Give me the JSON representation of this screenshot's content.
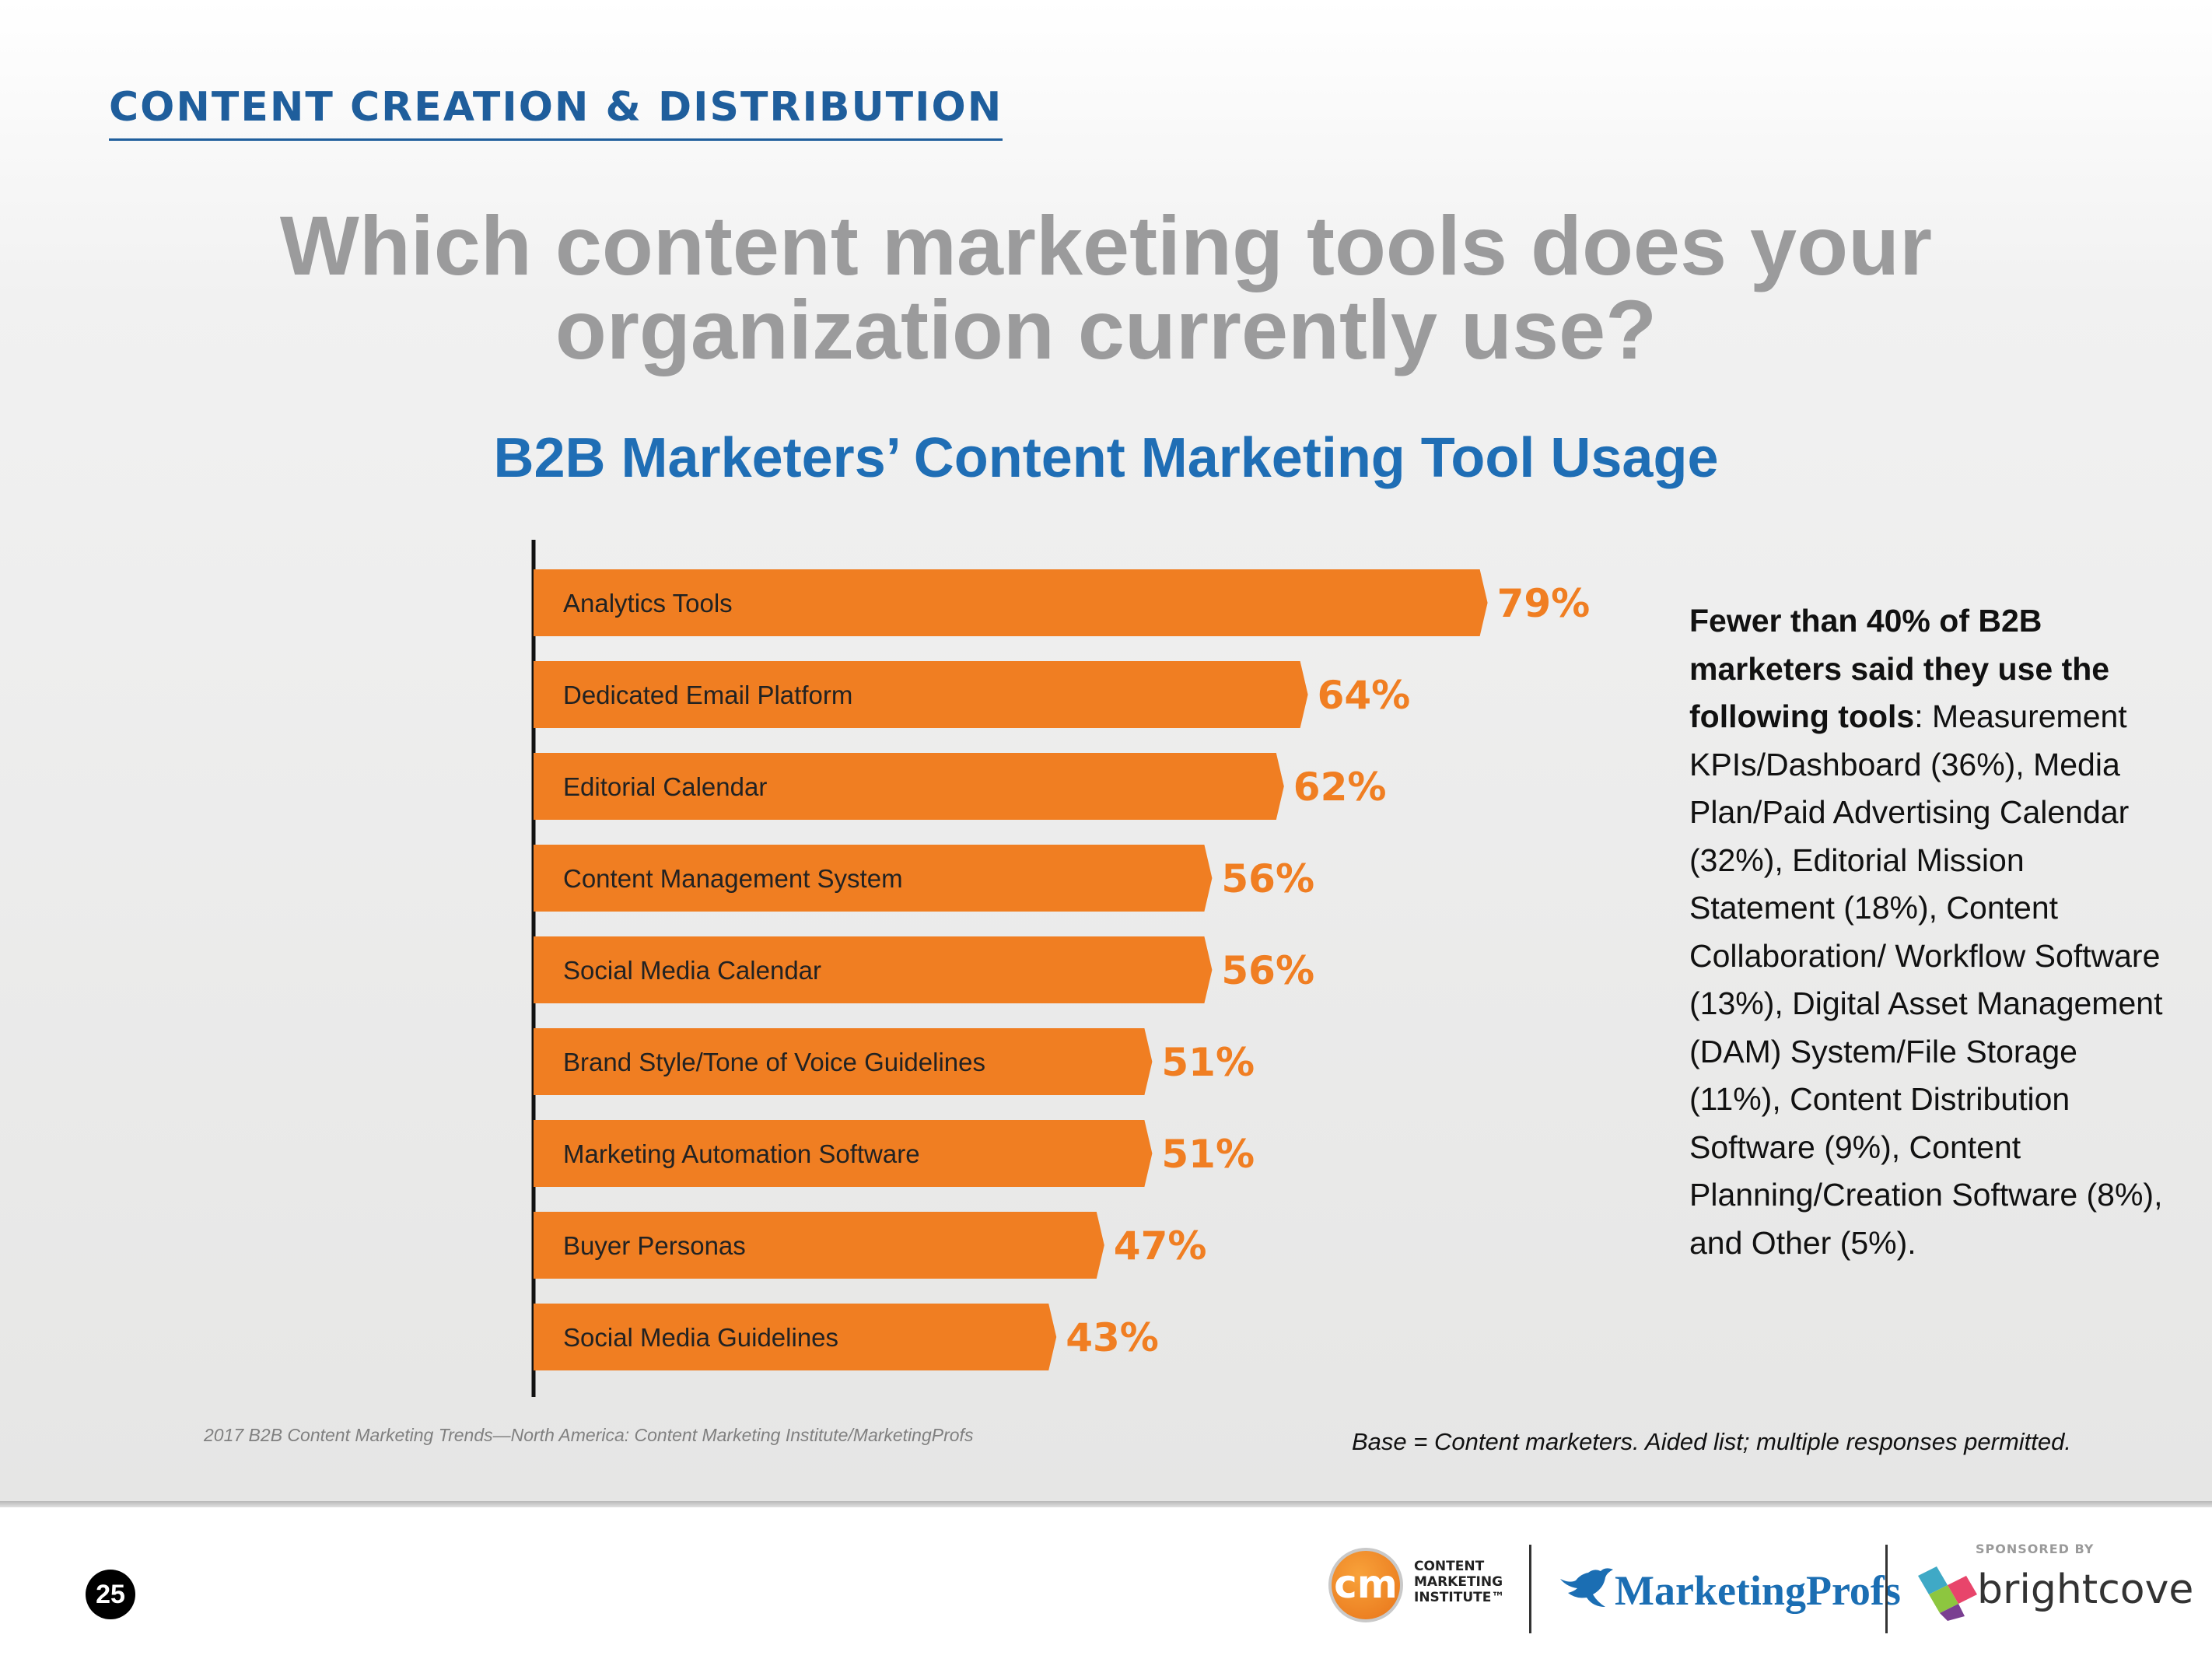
{
  "section_header": "CONTENT CREATION & DISTRIBUTION",
  "question": {
    "line1": "Which content marketing tools does your",
    "line2": "organization currently use?"
  },
  "chart_data": {
    "type": "bar",
    "orientation": "horizontal",
    "title": "B2B Marketers’ Content Marketing Tool Usage",
    "categories": [
      "Analytics Tools",
      "Dedicated Email Platform",
      "Editorial Calendar",
      "Content Management System",
      "Social Media Calendar",
      "Brand Style/Tone of Voice Guidelines",
      "Marketing Automation Software",
      "Buyer Personas",
      "Social Media Guidelines"
    ],
    "values": [
      79,
      64,
      62,
      56,
      56,
      51,
      51,
      47,
      43
    ],
    "value_labels": [
      "79%",
      "64%",
      "62%",
      "56%",
      "56%",
      "51%",
      "51%",
      "47%",
      "43%"
    ],
    "xlim": [
      0,
      100
    ],
    "grid": false,
    "bar_color": "#f07e22",
    "label_color": "#f07e22"
  },
  "sidebar_note": {
    "lead": "Fewer than 40% of B2B marketers said they use the following tools",
    "lead_punct": ":",
    "body": " Measurement KPIs/Dashboard (36%), Media Plan/Paid Advertising Calendar (32%), Editorial Mission Statement (18%), Content Collaboration/ Workflow Software (13%), Digital Asset Management (DAM) System/File Storage (11%), Content Distribution Software (9%), Content Planning/Creation Software (8%), and Other (5%)."
  },
  "source_note": "2017 B2B Content Marketing Trends—North America: Content Marketing Institute/MarketingProfs",
  "base_note": "Base = Content marketers. Aided list; multiple responses permitted.",
  "footer": {
    "page_number": "25",
    "cmi_mark": "cm",
    "cmi_line1": "CONTENT",
    "cmi_line2": "MARKETING",
    "cmi_line3": "INSTITUTE™",
    "marketingprofs": "MarketingProfs",
    "sponsored_by": "SPONSORED BY",
    "brightcove": "brightcove"
  },
  "colors": {
    "header_blue": "#1f5e9c",
    "chart_title_blue": "#1f6eb5",
    "question_gray": "#9b9b9c",
    "orange": "#f07e22"
  },
  "icons": {
    "cmi": "cmi-logo-icon",
    "marketingprofs": "marketingprofs-bird-icon",
    "brightcove": "brightcove-mark-icon"
  }
}
